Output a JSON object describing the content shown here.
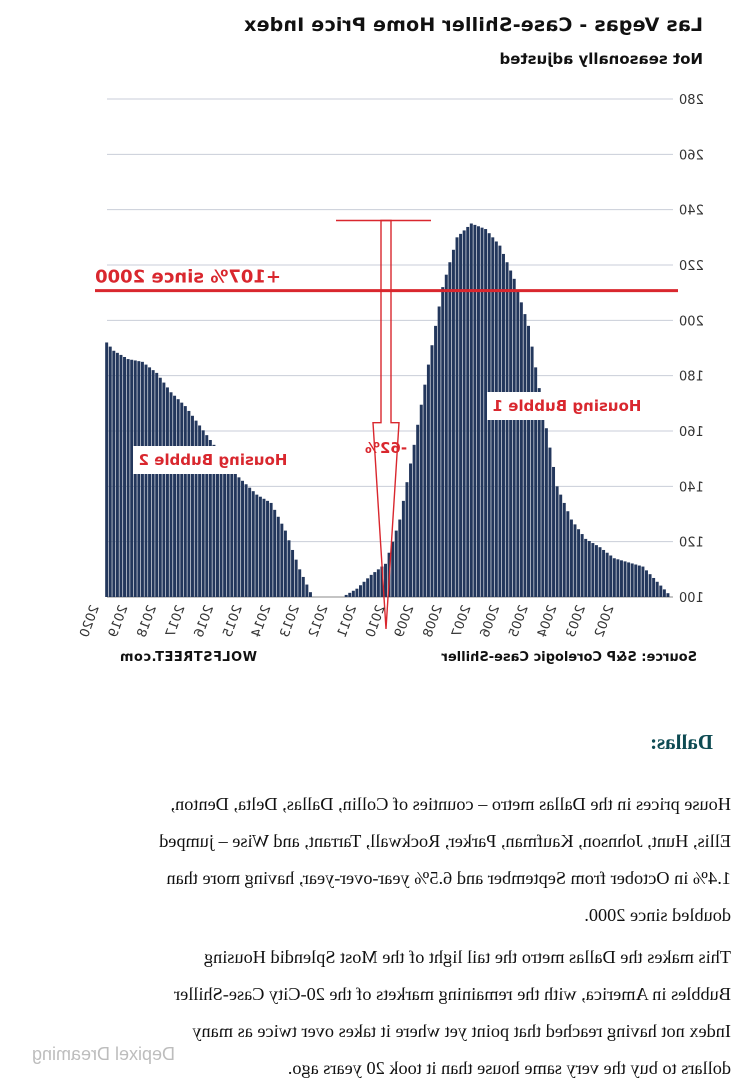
{
  "chart_data": {
    "type": "bar",
    "title": "Las Vegas - Case-Shiller Home Price Index",
    "subtitle": "Not seasonally adjusted",
    "ylim": [
      100,
      280
    ],
    "y_ticks": [
      100,
      120,
      140,
      160,
      180,
      200,
      220,
      240,
      260,
      280
    ],
    "x_ticks": [
      "2002",
      "2003",
      "2004",
      "2005",
      "2006",
      "2007",
      "2008",
      "2009",
      "2010",
      "2011",
      "2012",
      "2013",
      "2014",
      "2015",
      "2016",
      "2017",
      "2018",
      "2019",
      "2020"
    ],
    "grid": true,
    "x": [
      2000.0,
      2001.0,
      2002.0,
      2002.5,
      2003.0,
      2003.5,
      2004.0,
      2004.5,
      2005.0,
      2005.5,
      2006.0,
      2006.5,
      2007.0,
      2007.5,
      2008.0,
      2008.5,
      2009.0,
      2009.5,
      2010.0,
      2010.5,
      2011.0,
      2011.5,
      2012.0,
      2012.5,
      2013.0,
      2013.5,
      2014.0,
      2014.5,
      2015.0,
      2015.5,
      2016.0,
      2016.5,
      2017.0,
      2017.5,
      2018.0,
      2018.5,
      2019.0,
      2019.5,
      2020.0,
      2020.5,
      2021.0,
      2021.8
    ],
    "values": [
      100,
      111,
      114,
      118,
      121,
      128,
      140,
      168,
      198,
      215,
      227,
      233,
      235,
      230,
      212,
      184,
      155,
      128,
      112,
      108,
      103,
      100,
      97,
      99,
      110,
      124,
      134,
      137,
      142,
      147,
      155,
      162,
      169,
      174,
      181,
      185,
      186,
      189,
      195,
      199,
      202,
      207
    ],
    "series": [
      {
        "values_ref": "values"
      }
    ],
    "bar_color": "#23375c",
    "reference_line": {
      "label": "+107% since 2000",
      "value": 210,
      "color": "#d9272e"
    },
    "annotations": [
      {
        "text": "Housing Bubble 1",
        "color": "#d9272e"
      },
      {
        "text": "Housing Bubble 2",
        "color": "#d9272e"
      },
      {
        "text": "-62%",
        "color": "#d9272e"
      }
    ],
    "source": "Source: S&P Corelogic Case-Shiller",
    "credit": "WOLFSTREET.com"
  },
  "article": {
    "heading": "Dallas:",
    "para1_lines": [
      "House prices in the Dallas metro – counties of Collin, Dallas, Delta, Denton,",
      "Ellis, Hunt, Johnson, Kaufman, Parker, Rockwall, Tarrant, and Wise – jumped",
      "1.4% in October from September and 6.5% year-over-year, having more than",
      "doubled since 2000."
    ],
    "para2_lines": [
      "This makes the Dallas metro the tail light of the Most Splendid Housing",
      "Bubbles in America, with the remaining markets of the 20-City Case-Shiller",
      "Index not having reached that point yet where it takes over twice as many",
      "dollars to buy the very same house than it took 20 years ago."
    ]
  },
  "watermark": "Depixel Dreaming"
}
